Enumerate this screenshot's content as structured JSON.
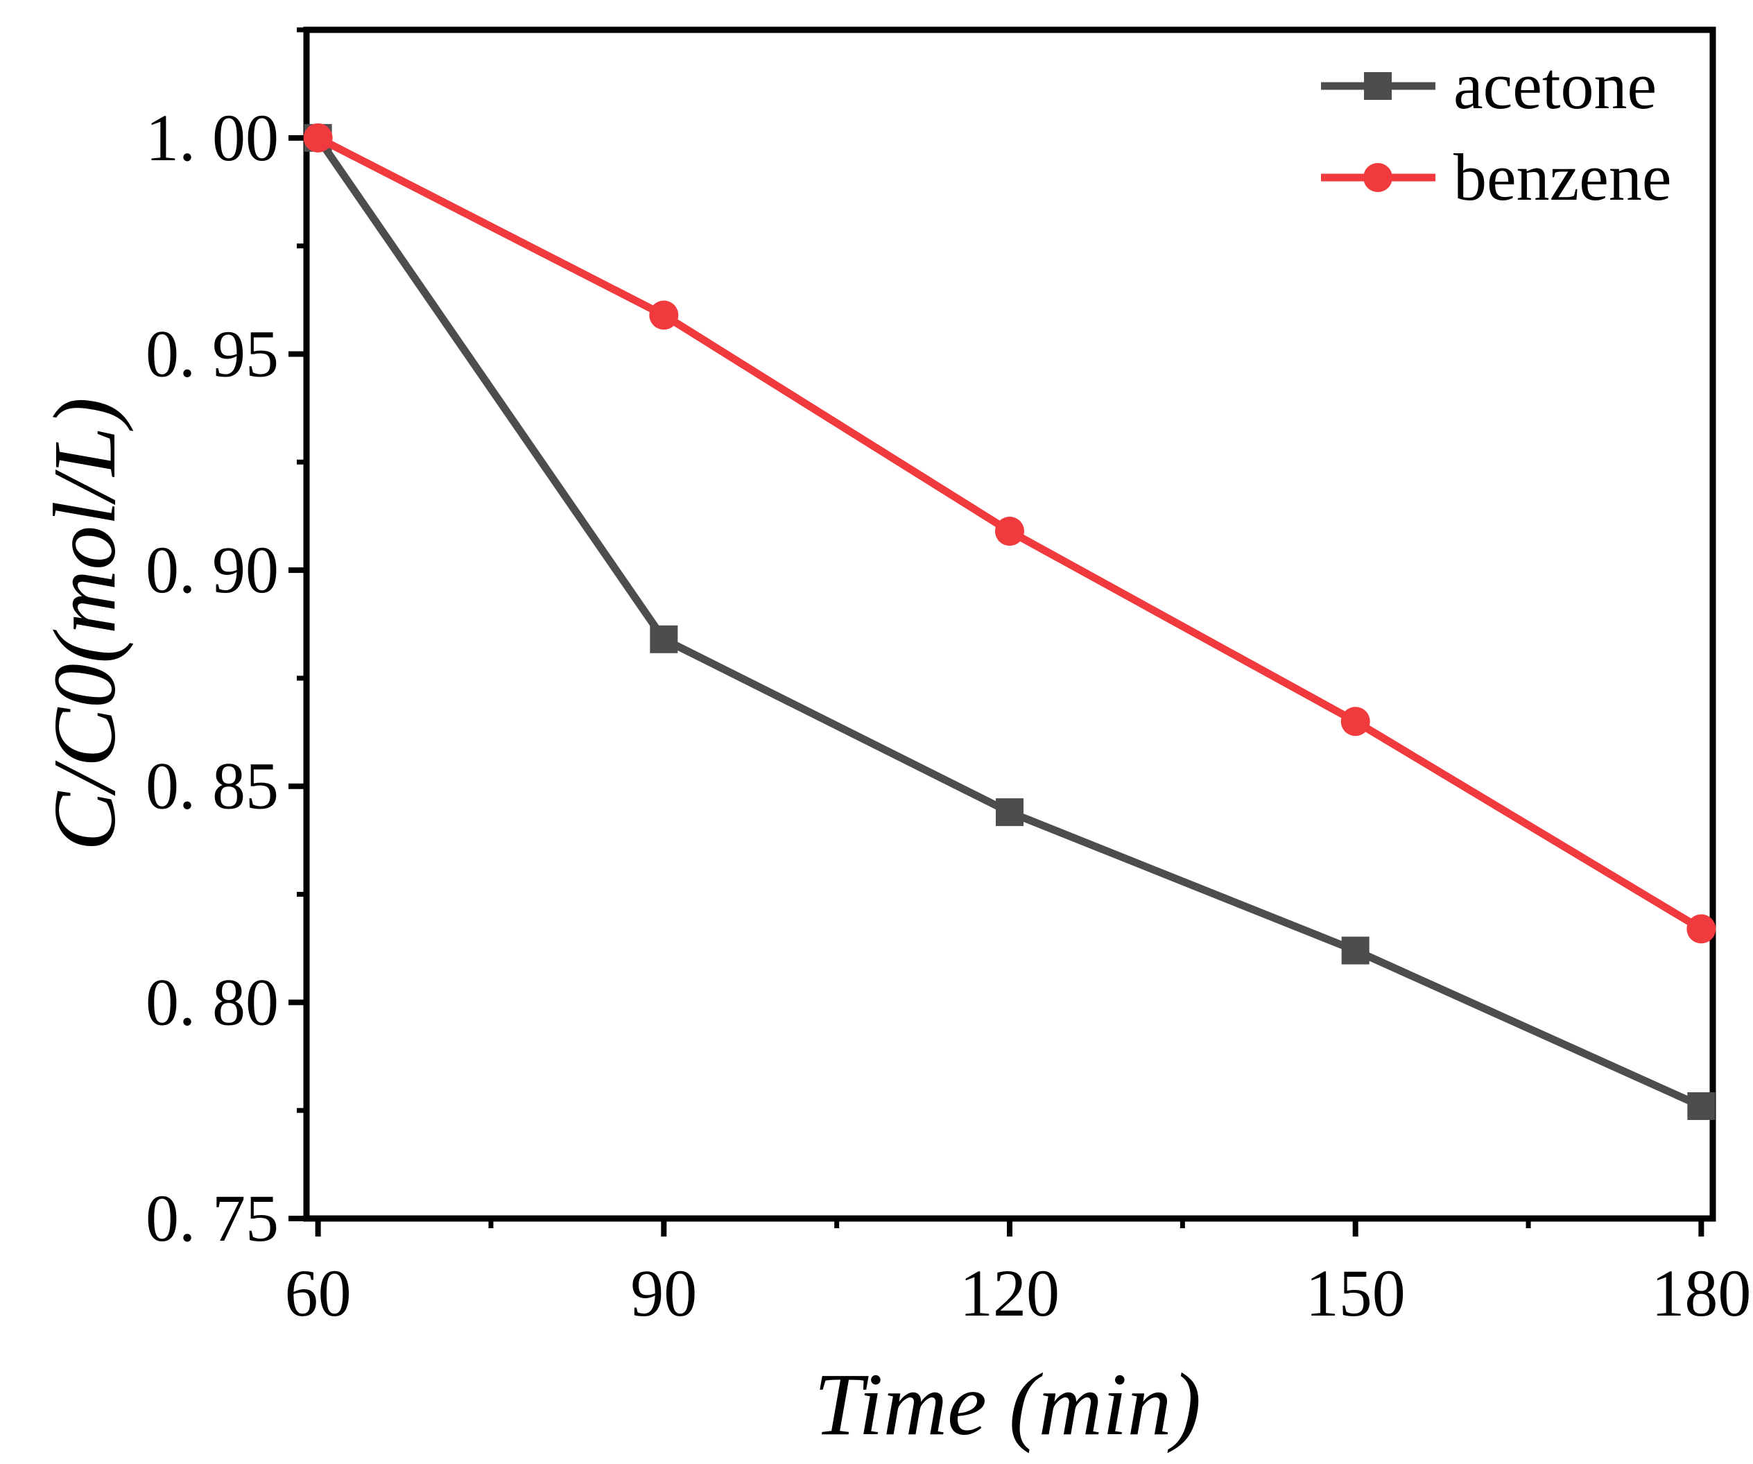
{
  "chart_data": {
    "type": "line",
    "title": "",
    "xlabel": "Time (min)",
    "ylabel": "C/C0(mol/L)",
    "x": [
      60,
      90,
      120,
      150,
      180
    ],
    "xlim": [
      59,
      181
    ],
    "ylim": [
      0.75,
      1.025
    ],
    "xticks": [
      60,
      90,
      120,
      150,
      180
    ],
    "xtick_labels": [
      "60",
      "90",
      "120",
      "150",
      "180"
    ],
    "yticks": [
      0.75,
      0.8,
      0.85,
      0.9,
      0.95,
      1.0
    ],
    "ytick_labels": [
      "0. 75",
      "0. 80",
      "0. 85",
      "0. 90",
      "0. 95",
      "1. 00"
    ],
    "grid": false,
    "legend_position": "top-right",
    "series": [
      {
        "name": "acetone",
        "color": "#4d4d4d",
        "marker": "square",
        "values": [
          1.0,
          0.884,
          0.844,
          0.812,
          0.776
        ]
      },
      {
        "name": "benzene",
        "color": "#f03a3d",
        "marker": "circle",
        "values": [
          1.0,
          0.959,
          0.909,
          0.865,
          0.817
        ]
      }
    ]
  }
}
